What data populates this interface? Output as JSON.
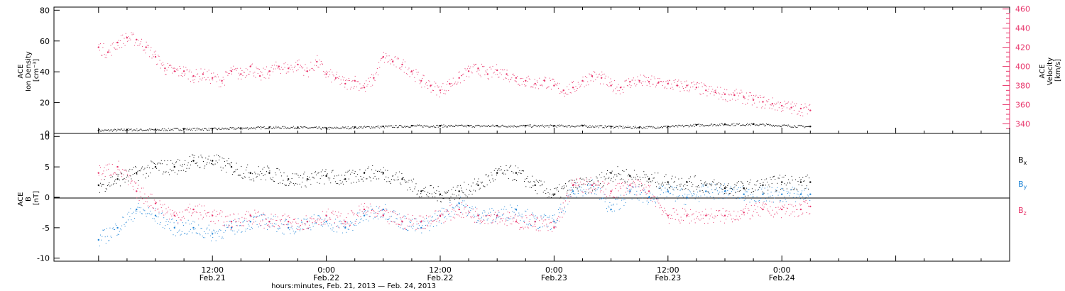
{
  "chart_data": [
    {
      "type": "scatter",
      "name": "ace-density-velocity",
      "left_axis": {
        "label_lines": [
          "ACE",
          "Ion Density",
          "[cm⁻³]"
        ],
        "ylim": [
          0,
          82
        ],
        "ticks": [
          0,
          20,
          40,
          60,
          80
        ],
        "tick_labels": [
          "0",
          "20",
          "40",
          "60",
          "80"
        ]
      },
      "right_axis": {
        "label_lines": [
          "ACE",
          "Velocity",
          "[km/s]"
        ],
        "ylim": [
          330,
          462
        ],
        "ticks": [
          340,
          360,
          380,
          400,
          420,
          440,
          460
        ],
        "tick_labels": [
          "340",
          "360",
          "380",
          "400",
          "420",
          "440",
          "460"
        ],
        "color": "#e8336a"
      },
      "series": [
        {
          "axis": "left",
          "color": "#000000",
          "x": [
            0,
            3,
            6,
            9,
            12,
            15,
            18,
            21,
            24,
            27,
            30,
            33,
            36,
            39,
            42,
            45,
            48,
            51,
            54,
            57,
            60,
            63,
            66,
            69,
            75
          ],
          "y": [
            2,
            2.5,
            2.5,
            3,
            3,
            3.5,
            4,
            4,
            3.5,
            4,
            4.5,
            5,
            5,
            5,
            5,
            5,
            5,
            5,
            4.5,
            4,
            4.5,
            5.5,
            6,
            6,
            4.5
          ]
        },
        {
          "axis": "right",
          "color": "#e8336a",
          "x": [
            0,
            1,
            2,
            3,
            4,
            5,
            6,
            7,
            8,
            9,
            10,
            11,
            12,
            13,
            14,
            15,
            16,
            17,
            18,
            19,
            20,
            21,
            22,
            23,
            24,
            25,
            26,
            27,
            28,
            29,
            30,
            31,
            32,
            33,
            34,
            35,
            36,
            37,
            38,
            39,
            40,
            41,
            42,
            43,
            44,
            45,
            46,
            47,
            48,
            49,
            50,
            51,
            52,
            53,
            54,
            55,
            56,
            57,
            58,
            59,
            60,
            61,
            62,
            63,
            64,
            65,
            66,
            67,
            68,
            69,
            70,
            71,
            72,
            73,
            74,
            75
          ],
          "y": [
            420,
            415,
            425,
            430,
            428,
            420,
            410,
            398,
            395,
            395,
            390,
            392,
            388,
            385,
            395,
            392,
            400,
            390,
            395,
            400,
            398,
            402,
            395,
            405,
            392,
            388,
            382,
            385,
            378,
            388,
            410,
            405,
            402,
            395,
            385,
            380,
            375,
            382,
            388,
            395,
            398,
            392,
            396,
            392,
            388,
            385,
            382,
            385,
            380,
            375,
            378,
            385,
            390,
            388,
            380,
            378,
            384,
            385,
            384,
            383,
            382,
            380,
            380,
            378,
            375,
            373,
            371,
            370,
            368,
            365,
            363,
            361,
            359,
            357,
            356,
            354
          ]
        }
      ]
    },
    {
      "type": "scatter",
      "name": "ace-imf",
      "left_axis": {
        "label_lines": [
          "ACE",
          "B",
          "[nT]"
        ],
        "ylim": [
          -10.5,
          10.5
        ],
        "ticks": [
          -10,
          -5,
          0,
          5,
          10
        ],
        "tick_labels": [
          "-10",
          "-5",
          "0",
          "5",
          "10"
        ]
      },
      "zero_line": true,
      "legend": {
        "placement": "right",
        "entries": [
          "Bx",
          "By",
          "Bz"
        ]
      },
      "series": [
        {
          "name": "Bx",
          "legend_main": "B",
          "legend_sub": "x",
          "color": "#000000",
          "x": [
            0,
            2,
            4,
            6,
            8,
            10,
            12,
            14,
            16,
            18,
            20,
            22,
            24,
            26,
            28,
            30,
            32,
            34,
            36,
            38,
            40,
            42,
            44,
            46,
            48,
            50,
            52,
            54,
            56,
            58,
            60,
            62,
            64,
            66,
            68,
            70,
            72,
            74,
            75
          ],
          "y": [
            2,
            3,
            4,
            5,
            5,
            6,
            6,
            5,
            4,
            4,
            3,
            3,
            3.5,
            3,
            4,
            4,
            3,
            1,
            0.5,
            1,
            2,
            4,
            4,
            2,
            0.5,
            2,
            2,
            4,
            3.5,
            3,
            2.5,
            2.5,
            2,
            1.5,
            1.5,
            2,
            2.5,
            2.5,
            2.5
          ]
        },
        {
          "name": "By",
          "legend_main": "B",
          "legend_sub": "y",
          "color": "#1f84d6",
          "x": [
            0,
            2,
            4,
            6,
            8,
            10,
            12,
            14,
            16,
            18,
            20,
            22,
            24,
            26,
            28,
            30,
            32,
            34,
            36,
            38,
            40,
            42,
            44,
            46,
            48,
            50,
            52,
            54,
            56,
            58,
            60,
            62,
            64,
            66,
            68,
            70,
            72,
            74,
            75
          ],
          "y": [
            -7,
            -5,
            -2,
            -3,
            -5,
            -5,
            -6,
            -5,
            -4,
            -4,
            -5,
            -4,
            -4,
            -5,
            -3,
            -2,
            -4,
            -5,
            -3,
            -1,
            -3,
            -3,
            -2,
            -4,
            -4,
            1,
            2,
            -2,
            1,
            0,
            1,
            0,
            1,
            1,
            0.5,
            0.5,
            0.5,
            0.5,
            0.5
          ]
        },
        {
          "name": "Bz",
          "legend_main": "B",
          "legend_sub": "z",
          "color": "#e8336a",
          "x": [
            0,
            2,
            4,
            6,
            8,
            10,
            12,
            14,
            16,
            18,
            20,
            22,
            24,
            26,
            28,
            30,
            32,
            34,
            36,
            38,
            40,
            42,
            44,
            46,
            48,
            50,
            52,
            54,
            56,
            58,
            60,
            62,
            64,
            66,
            68,
            70,
            72,
            74,
            75
          ],
          "y": [
            4,
            5,
            1,
            -1,
            -3,
            -2,
            -3,
            -4,
            -3,
            -4,
            -4,
            -4,
            -3,
            -4,
            -2,
            -3,
            -4,
            -4,
            -3,
            -2,
            -3,
            -3,
            -4,
            -4,
            -5,
            2,
            2,
            1,
            2,
            1,
            -3,
            -3,
            -3,
            -3,
            -2.5,
            -2,
            -2,
            -2,
            -1.5
          ]
        }
      ]
    }
  ],
  "x_axis": {
    "xlim": [
      -4.7,
      96
    ],
    "ticks": [
      12,
      24,
      36,
      48,
      60,
      72,
      84
    ],
    "tick_labels_time": [
      "12:00",
      "0:00",
      "12:00",
      "0:00",
      "12:00",
      "0:00",
      ""
    ],
    "tick_labels_date": [
      "Feb.21",
      "Feb.22",
      "Feb.22",
      "Feb.23",
      "Feb.23",
      "Feb.24",
      ""
    ],
    "title": "hours:minutes, Feb. 21, 2013 — Feb. 24, 2013"
  }
}
